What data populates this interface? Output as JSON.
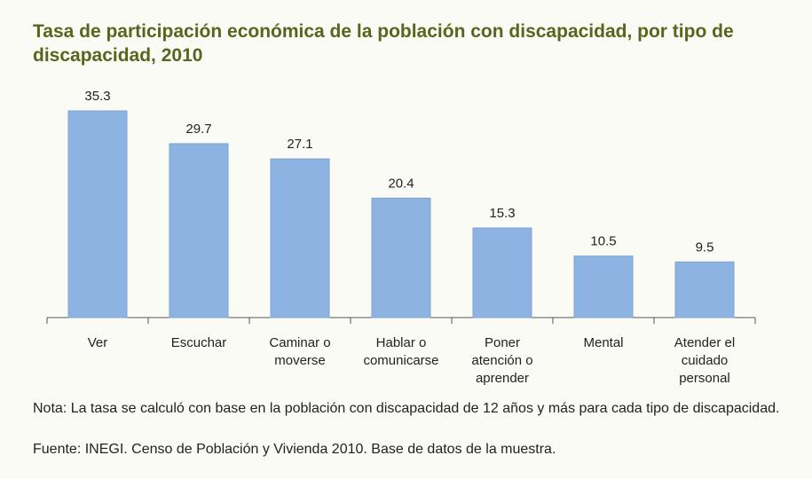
{
  "chart_data": {
    "type": "bar",
    "title": "Tasa de participación económica de la población con discapacidad, por tipo de discapacidad, 2010",
    "categories": [
      "Ver",
      "Escuchar",
      "Caminar o moverse",
      "Hablar o comunicarse",
      "Poner atención o aprender",
      "Mental",
      "Atender el cuidado personal"
    ],
    "values": [
      35.3,
      29.7,
      27.1,
      20.4,
      15.3,
      10.5,
      9.5
    ],
    "color": "#8db3e2",
    "note": "Nota: La tasa se calculó con base en la población con discapacidad de 12 años y más para cada tipo de discapacidad.",
    "source": "Fuente: INEGI. Censo de Población y Vivienda 2010. Base de datos de la muestra."
  }
}
